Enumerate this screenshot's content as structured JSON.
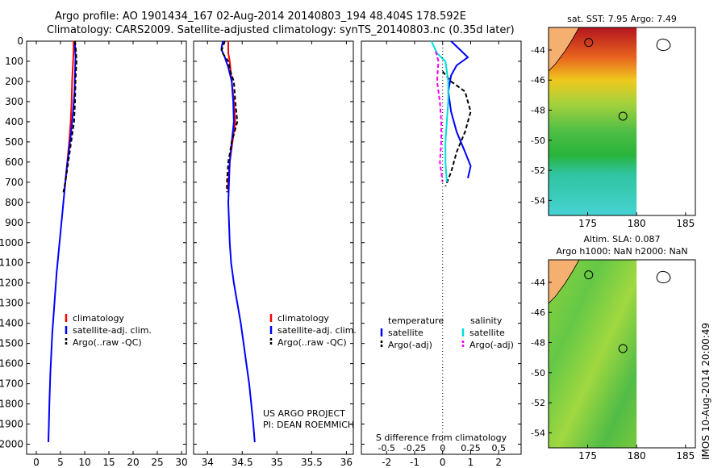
{
  "header": {
    "title_line1": "Argo profile: AO 1901434_167 02-Aug-2014 20140803_194 48.404S 178.592E",
    "title_line2": "Climatology: CARS2009. Satellite-adjusted climatology: synTS_20140803.nc (0.35d later)"
  },
  "side_stamp": "IMOS 10-Aug-2014 20:00:49",
  "colors": {
    "climatology": "#ff0000",
    "satellite": "#0000ff",
    "argo": "#000000",
    "salinity_satellite": "#00dddd",
    "salinity_argo": "#ff00ff"
  },
  "chart_data": [
    {
      "type": "line",
      "panel": "temperature",
      "xlabel": "temperature (deg C)",
      "ylabel": "",
      "xlim": [
        -2,
        31
      ],
      "ylim": [
        2050,
        0
      ],
      "xticks": [
        0,
        5,
        10,
        15,
        20,
        25,
        30
      ],
      "yticks": [
        0,
        100,
        200,
        300,
        400,
        500,
        600,
        700,
        800,
        900,
        1000,
        1100,
        1200,
        1300,
        1400,
        1500,
        1600,
        1700,
        1800,
        1900,
        2000
      ],
      "legend": [
        "climatology",
        "satellite-adj. clim.",
        "Argo(..raw -QC)"
      ],
      "series": [
        {
          "name": "climatology",
          "style": "solid",
          "color": "#ff0000",
          "points": [
            [
              7.7,
              0
            ],
            [
              7.7,
              50
            ],
            [
              7.6,
              100
            ],
            [
              7.5,
              150
            ],
            [
              7.4,
              200
            ],
            [
              7.3,
              300
            ],
            [
              7.1,
              400
            ],
            [
              6.8,
              500
            ],
            [
              6.4,
              600
            ],
            [
              6.0,
              700
            ],
            [
              5.7,
              750
            ]
          ]
        },
        {
          "name": "satellite-adj. clim.",
          "style": "solid",
          "color": "#0000ff",
          "points": [
            [
              8.0,
              0
            ],
            [
              8.0,
              40
            ],
            [
              8.1,
              80
            ],
            [
              8.0,
              150
            ],
            [
              7.9,
              250
            ],
            [
              7.6,
              350
            ],
            [
              7.2,
              450
            ],
            [
              6.7,
              550
            ],
            [
              6.2,
              650
            ],
            [
              5.8,
              750
            ],
            [
              5.4,
              850
            ],
            [
              5.0,
              950
            ],
            [
              4.6,
              1050
            ],
            [
              4.2,
              1150
            ],
            [
              3.9,
              1250
            ],
            [
              3.6,
              1350
            ],
            [
              3.3,
              1450
            ],
            [
              3.1,
              1550
            ],
            [
              2.9,
              1650
            ],
            [
              2.7,
              1800
            ],
            [
              2.6,
              1900
            ],
            [
              2.5,
              1990
            ]
          ]
        },
        {
          "name": "Argo(..raw -QC)",
          "style": "dashed",
          "color": "#000000",
          "points": [
            [
              8.0,
              0
            ],
            [
              8.2,
              50
            ],
            [
              8.3,
              100
            ],
            [
              8.2,
              150
            ],
            [
              8.1,
              200
            ],
            [
              8.0,
              300
            ],
            [
              7.8,
              400
            ],
            [
              7.2,
              500
            ],
            [
              6.6,
              600
            ],
            [
              6.0,
              700
            ],
            [
              5.6,
              750
            ]
          ]
        }
      ]
    },
    {
      "type": "line",
      "panel": "salinity",
      "xlabel": "salinity",
      "ylabel": "",
      "xlim": [
        33.8,
        36.1
      ],
      "ylim": [
        2050,
        0
      ],
      "xticks": [
        34,
        34.5,
        35,
        35.5,
        36
      ],
      "legend": [
        "climatology",
        "satellite-adj. clim.",
        "Argo(..raw -QC)"
      ],
      "annotations": [
        "US ARGO PROJECT",
        "PI: DEAN ROEMMICH"
      ],
      "series": [
        {
          "name": "climatology",
          "style": "solid",
          "color": "#ff0000",
          "points": [
            [
              34.3,
              0
            ],
            [
              34.3,
              60
            ],
            [
              34.32,
              100
            ],
            [
              34.35,
              200
            ],
            [
              34.38,
              300
            ],
            [
              34.4,
              400
            ],
            [
              34.36,
              500
            ],
            [
              34.32,
              600
            ],
            [
              34.3,
              700
            ],
            [
              34.3,
              750
            ]
          ]
        },
        {
          "name": "satellite-adj. clim.",
          "style": "solid",
          "color": "#0000ff",
          "points": [
            [
              34.22,
              0
            ],
            [
              34.2,
              40
            ],
            [
              34.25,
              80
            ],
            [
              34.3,
              130
            ],
            [
              34.35,
              200
            ],
            [
              34.37,
              300
            ],
            [
              34.38,
              400
            ],
            [
              34.35,
              500
            ],
            [
              34.32,
              600
            ],
            [
              34.31,
              700
            ],
            [
              34.3,
              800
            ],
            [
              34.31,
              900
            ],
            [
              34.32,
              1000
            ],
            [
              34.34,
              1100
            ],
            [
              34.38,
              1200
            ],
            [
              34.43,
              1300
            ],
            [
              34.48,
              1400
            ],
            [
              34.52,
              1500
            ],
            [
              34.56,
              1600
            ],
            [
              34.6,
              1700
            ],
            [
              34.63,
              1800
            ],
            [
              34.66,
              1900
            ],
            [
              34.68,
              1990
            ]
          ]
        },
        {
          "name": "Argo(..raw -QC)",
          "style": "dashed",
          "color": "#000000",
          "points": [
            [
              34.25,
              0
            ],
            [
              34.2,
              50
            ],
            [
              34.3,
              100
            ],
            [
              34.33,
              150
            ],
            [
              34.38,
              200
            ],
            [
              34.4,
              300
            ],
            [
              34.43,
              400
            ],
            [
              34.35,
              500
            ],
            [
              34.3,
              600
            ],
            [
              34.28,
              700
            ],
            [
              34.28,
              750
            ]
          ]
        }
      ]
    },
    {
      "type": "line",
      "panel": "difference",
      "xlabel": "T difference from climatology",
      "xlabel_top": "S difference from climatology",
      "xlim": [
        -2.9,
        2.8
      ],
      "ylim": [
        2050,
        0
      ],
      "xticks": [
        -2,
        -1,
        0,
        1,
        2
      ],
      "sticks": [
        -0.5,
        -0.25,
        0,
        0.25,
        0.5
      ],
      "sticks_labels": [
        "-0.5",
        "-0.25",
        "0",
        "0.25",
        "0.5"
      ],
      "legend_temperature": "temperature",
      "legend_salinity": "salinity",
      "legend_entries": [
        "satellite",
        "Argo(-adj)",
        "satellite",
        "Argo(-adj)"
      ],
      "series": [
        {
          "name": "satellite",
          "group": "temperature",
          "style": "solid",
          "color": "#0000ff",
          "points": [
            [
              0.3,
              0
            ],
            [
              0.6,
              40
            ],
            [
              0.9,
              80
            ],
            [
              0.5,
              120
            ],
            [
              0.3,
              170
            ],
            [
              0.2,
              250
            ],
            [
              0.3,
              350
            ],
            [
              0.5,
              450
            ],
            [
              0.8,
              550
            ],
            [
              1.0,
              620
            ],
            [
              0.9,
              680
            ]
          ]
        },
        {
          "name": "Argo(-adj)",
          "group": "temperature",
          "style": "dashed",
          "color": "#000000",
          "points": [
            [
              0.0,
              150
            ],
            [
              0.3,
              200
            ],
            [
              0.8,
              250
            ],
            [
              1.0,
              350
            ],
            [
              0.8,
              450
            ],
            [
              0.5,
              550
            ],
            [
              0.3,
              650
            ],
            [
              0.1,
              720
            ]
          ]
        },
        {
          "name": "satellite",
          "group": "salinity",
          "style": "solid",
          "color": "#00dddd",
          "points": [
            [
              -0.4,
              0
            ],
            [
              -0.2,
              60
            ],
            [
              0.1,
              100
            ],
            [
              0.2,
              200
            ],
            [
              0.2,
              300
            ],
            [
              0.15,
              400
            ],
            [
              0.1,
              500
            ],
            [
              0.1,
              600
            ],
            [
              0.15,
              700
            ]
          ]
        },
        {
          "name": "Argo(-adj)",
          "group": "salinity",
          "style": "dashed",
          "color": "#ff00ff",
          "points": [
            [
              -0.25,
              50
            ],
            [
              -0.15,
              100
            ],
            [
              -0.2,
              200
            ],
            [
              -0.1,
              300
            ],
            [
              -0.05,
              400
            ],
            [
              -0.05,
              500
            ],
            [
              -0.1,
              600
            ],
            [
              0.0,
              700
            ]
          ]
        }
      ]
    },
    {
      "type": "heatmap",
      "panel": "sst-map",
      "title": "sat. SST: 7.95 Argo: 7.49",
      "xticks": [
        175,
        180,
        185
      ],
      "yticks": [
        -44,
        -46,
        -48,
        -50,
        -52,
        -54
      ],
      "xlim": [
        171,
        186
      ],
      "ylim": [
        -55,
        -42.5
      ],
      "data_extent_lon": [
        171,
        180
      ]
    },
    {
      "type": "heatmap",
      "panel": "sla-map",
      "title": "Altim. SLA: 0.087",
      "subtitle": "Argo h1000: NaN h2000: NaN",
      "xticks": [
        175,
        180,
        185
      ],
      "yticks": [
        -44,
        -46,
        -48,
        -50,
        -52,
        -54
      ],
      "xlim": [
        171,
        186
      ],
      "ylim": [
        -55,
        -42.5
      ],
      "data_extent_lon": [
        171,
        180
      ]
    }
  ]
}
